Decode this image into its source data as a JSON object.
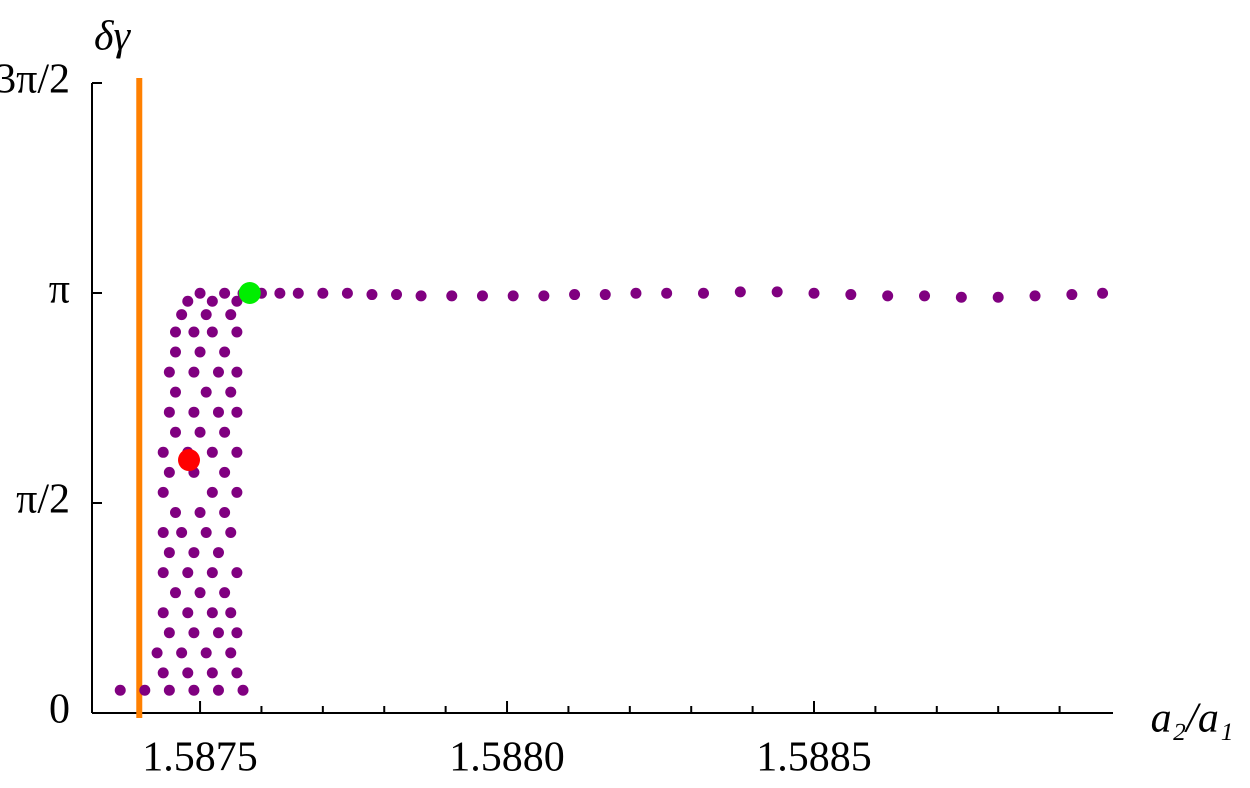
{
  "chart_data": {
    "type": "scatter",
    "xlabel": "a₂/a₁",
    "ylabel": "δγ",
    "xlim": [
      1.587324,
      1.588987
    ],
    "ylim": [
      0,
      4.7124
    ],
    "xticks": [
      1.5875,
      {
        "value": 1.588,
        "label": "1.5880"
      },
      1.5885
    ],
    "xminorticks": [
      1.5874,
      1.5876,
      1.5877,
      1.5878,
      1.5879,
      1.5881,
      1.5882,
      1.5883,
      1.5884,
      1.5886,
      1.5887,
      1.5888,
      1.5889
    ],
    "yticks": [
      0,
      {
        "value": 1.5708,
        "label": "π/2"
      },
      {
        "value": 3.1416,
        "label": "π"
      },
      {
        "value": 4.7124,
        "label": "3π/2"
      }
    ],
    "vline": {
      "value": 1.587401,
      "color": "#ff8000"
    },
    "series": [
      {
        "color": "#800080",
        "x": [
          1.58737,
          1.58741,
          1.58745,
          1.58749,
          1.58753,
          1.58757,
          1.58744,
          1.58748,
          1.58752,
          1.58756,
          1.58743,
          1.58747,
          1.58751,
          1.58755,
          1.58745,
          1.58749,
          1.58753,
          1.58756,
          1.58744,
          1.58748,
          1.58752,
          1.58755,
          1.58746,
          1.5875,
          1.58754,
          1.58744,
          1.58748,
          1.58752,
          1.58756,
          1.58745,
          1.58749,
          1.58753,
          1.58744,
          1.58747,
          1.58751,
          1.58755,
          1.58746,
          1.5875,
          1.58754,
          1.58744,
          1.58752,
          1.58756,
          1.58745,
          1.58749,
          1.58754,
          1.58744,
          1.58748,
          1.58752,
          1.58756,
          1.58746,
          1.5875,
          1.58754,
          1.58745,
          1.58749,
          1.58753,
          1.58756,
          1.58746,
          1.58751,
          1.58755,
          1.58745,
          1.58749,
          1.58753,
          1.58756,
          1.58746,
          1.5875,
          1.58754,
          1.58746,
          1.58749,
          1.58752,
          1.58756,
          1.58747,
          1.58751,
          1.58755,
          1.58748,
          1.58752,
          1.58756,
          1.5875,
          1.58754,
          1.58757,
          1.5876,
          1.58763,
          1.58766,
          1.5877,
          1.58774,
          1.58778,
          1.58782,
          1.58786,
          1.58791,
          1.58796,
          1.58801,
          1.58806,
          1.58811,
          1.58816,
          1.58821,
          1.58826,
          1.58832,
          1.58838,
          1.58844,
          1.5885,
          1.58856,
          1.58862,
          1.58868,
          1.58874,
          1.5888,
          1.58886,
          1.58892,
          1.58897
        ],
        "values": [
          0.17,
          0.17,
          0.17,
          0.17,
          0.17,
          0.17,
          0.3,
          0.3,
          0.3,
          0.3,
          0.45,
          0.45,
          0.45,
          0.45,
          0.6,
          0.6,
          0.6,
          0.6,
          0.75,
          0.75,
          0.75,
          0.75,
          0.9,
          0.9,
          0.9,
          1.05,
          1.05,
          1.05,
          1.05,
          1.2,
          1.2,
          1.2,
          1.35,
          1.35,
          1.35,
          1.35,
          1.5,
          1.5,
          1.5,
          1.65,
          1.65,
          1.65,
          1.8,
          1.8,
          1.8,
          1.95,
          1.95,
          1.95,
          1.95,
          2.1,
          2.1,
          2.1,
          2.25,
          2.25,
          2.25,
          2.25,
          2.4,
          2.4,
          2.4,
          2.55,
          2.55,
          2.55,
          2.55,
          2.7,
          2.7,
          2.7,
          2.85,
          2.85,
          2.85,
          2.85,
          2.98,
          2.98,
          2.98,
          3.08,
          3.08,
          3.08,
          3.14,
          3.14,
          3.14,
          3.14,
          3.14,
          3.14,
          3.14,
          3.14,
          3.13,
          3.13,
          3.12,
          3.12,
          3.12,
          3.12,
          3.12,
          3.13,
          3.13,
          3.14,
          3.14,
          3.14,
          3.15,
          3.15,
          3.14,
          3.13,
          3.12,
          3.12,
          3.11,
          3.11,
          3.12,
          3.13,
          3.14
        ]
      },
      {
        "color": "#ff0000",
        "x": [
          1.587482
        ],
        "values": [
          1.892
        ]
      },
      {
        "color": "#00ee00",
        "x": [
          1.587581
        ],
        "values": [
          3.1416
        ]
      }
    ]
  }
}
